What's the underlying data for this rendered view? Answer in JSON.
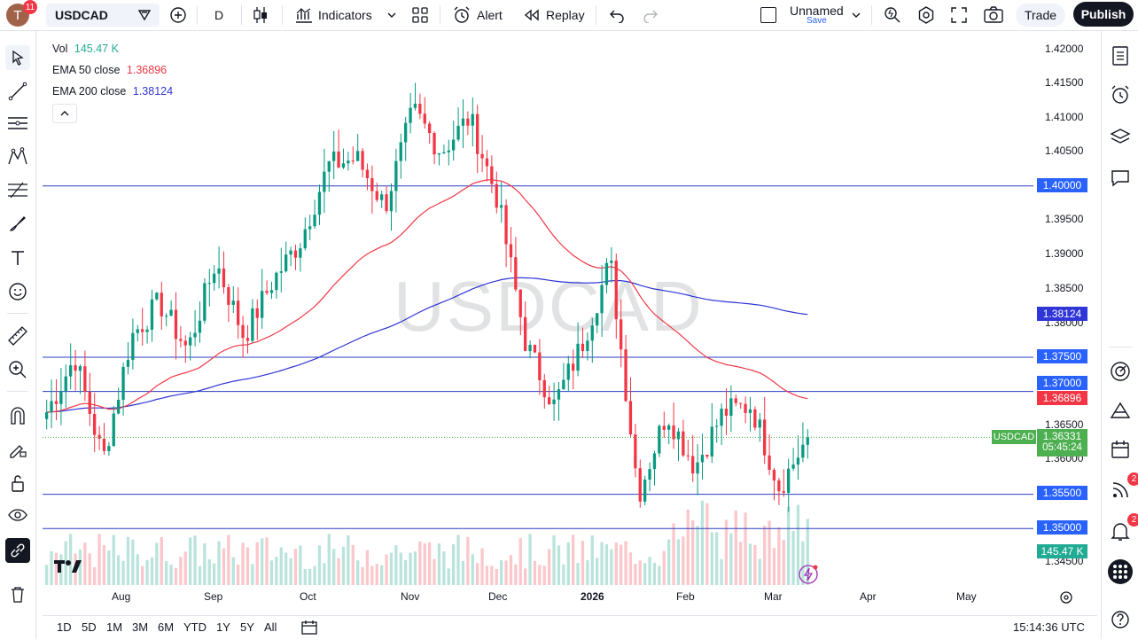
{
  "topbar": {
    "avatar_letter": "T",
    "notification_count": "11",
    "symbol": "USDCAD",
    "interval": "D",
    "indicators_label": "Indicators",
    "alert_label": "Alert",
    "replay_label": "Replay",
    "layout_name": "Unnamed",
    "layout_save": "Save",
    "trade_label": "Trade",
    "publish_label": "Publish"
  },
  "legend": {
    "vol_label": "Vol",
    "vol_value": "145.47 K",
    "ema50_label": "EMA 50 close",
    "ema50_value": "1.36896",
    "ema200_label": "EMA 200 close",
    "ema200_value": "1.38124"
  },
  "watermark": "USDCAD",
  "price_scale": {
    "ticks": [
      "1.42000",
      "1.41500",
      "1.41000",
      "1.40500",
      "1.39500",
      "1.39000",
      "1.38500",
      "1.38000",
      "1.36500",
      "1.36000",
      "1.34500"
    ],
    "level_boxes": [
      "1.40000",
      "1.37500",
      "1.37000",
      "1.35500",
      "1.35000"
    ],
    "ema200_box": "1.38124",
    "ema50_box": "1.36896",
    "symbol_tag": "USDCAD",
    "last_price": "1.36331",
    "countdown": "05:45:24",
    "volume_box": "145.47 K"
  },
  "time_axis": {
    "labels": [
      "Aug",
      "Sep",
      "Oct",
      "Nov",
      "Dec",
      "2026",
      "Feb",
      "Mar",
      "Apr",
      "May"
    ]
  },
  "bottombar": {
    "ranges": [
      "1D",
      "5D",
      "1M",
      "3M",
      "6M",
      "YTD",
      "1Y",
      "5Y",
      "All"
    ],
    "clock": "15:14:36 UTC"
  },
  "right_toolbar": {
    "badge_1": "2",
    "badge_2": "2"
  },
  "colors": {
    "up": "#089981",
    "down": "#f23645",
    "ema50": "#f23645",
    "ema200": "#2f35d6",
    "level_line": "#2a3fc0",
    "level_box": "#2962ff",
    "last_price_box": "#4caf50"
  },
  "chart_data": {
    "type": "candlestick",
    "symbol": "USDCAD",
    "interval": "D",
    "horizontal_levels": [
      1.4,
      1.375,
      1.37,
      1.355,
      1.35
    ],
    "ema50_last": 1.36896,
    "ema200_last": 1.38124,
    "last_price": 1.36331,
    "approx_path": [
      {
        "t": "mid-Jul",
        "close": 1.367
      },
      {
        "t": "late-Jul",
        "close": 1.375
      },
      {
        "t": "Aug-1",
        "close": 1.36
      },
      {
        "t": "Aug-4",
        "close": 1.378
      },
      {
        "t": "mid-Aug",
        "close": 1.383
      },
      {
        "t": "late-Aug",
        "close": 1.376
      },
      {
        "t": "Sep-1",
        "close": 1.389
      },
      {
        "t": "mid-Sep",
        "close": 1.378
      },
      {
        "t": "late-Sep",
        "close": 1.386
      },
      {
        "t": "Oct-1",
        "close": 1.392
      },
      {
        "t": "Oct-10",
        "close": 1.403
      },
      {
        "t": "mid-Oct",
        "close": 1.404
      },
      {
        "t": "late-Oct",
        "close": 1.397
      },
      {
        "t": "Nov-5",
        "close": 1.411
      },
      {
        "t": "mid-Nov",
        "close": 1.405
      },
      {
        "t": "late-Nov",
        "close": 1.41
      },
      {
        "t": "Dec-1",
        "close": 1.398
      },
      {
        "t": "mid-Dec",
        "close": 1.377
      },
      {
        "t": "late-Dec",
        "close": 1.368
      },
      {
        "t": "Jan-5",
        "close": 1.377
      },
      {
        "t": "mid-Jan",
        "close": 1.389
      },
      {
        "t": "late-Jan",
        "close": 1.355
      },
      {
        "t": "Feb-2",
        "close": 1.367
      },
      {
        "t": "mid-Feb",
        "close": 1.359
      },
      {
        "t": "late-Feb",
        "close": 1.367
      },
      {
        "t": "Mar-3",
        "close": 1.368
      },
      {
        "t": "Mar-9",
        "close": 1.356
      },
      {
        "t": "Mar-12",
        "close": 1.36331
      }
    ]
  }
}
